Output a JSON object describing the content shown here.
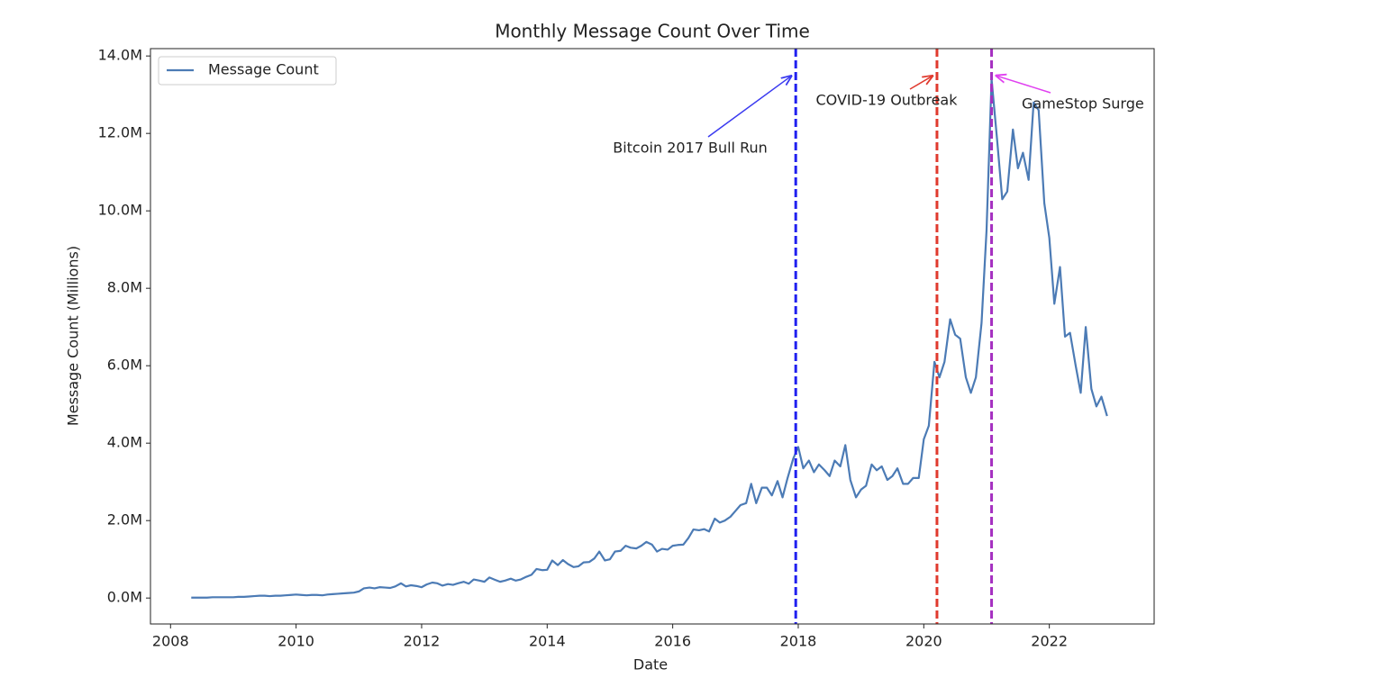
{
  "chart_data": {
    "type": "line",
    "title": "Monthly Message Count Over Time",
    "x_label": "Date",
    "y_label": "Message Count (Millions)",
    "x": [
      2008.33,
      2008.42,
      2008.5,
      2008.58,
      2008.67,
      2008.75,
      2008.83,
      2008.92,
      2009,
      2009.08,
      2009.17,
      2009.25,
      2009.33,
      2009.42,
      2009.5,
      2009.58,
      2009.67,
      2009.75,
      2009.83,
      2009.92,
      2010,
      2010.08,
      2010.17,
      2010.25,
      2010.33,
      2010.42,
      2010.5,
      2010.58,
      2010.67,
      2010.75,
      2010.83,
      2010.92,
      2011,
      2011.08,
      2011.17,
      2011.25,
      2011.33,
      2011.42,
      2011.5,
      2011.58,
      2011.67,
      2011.75,
      2011.83,
      2011.92,
      2012,
      2012.08,
      2012.17,
      2012.25,
      2012.33,
      2012.42,
      2012.5,
      2012.58,
      2012.67,
      2012.75,
      2012.83,
      2012.92,
      2013,
      2013.08,
      2013.17,
      2013.25,
      2013.33,
      2013.42,
      2013.5,
      2013.58,
      2013.67,
      2013.75,
      2013.83,
      2013.92,
      2014,
      2014.08,
      2014.17,
      2014.25,
      2014.33,
      2014.42,
      2014.5,
      2014.58,
      2014.67,
      2014.75,
      2014.83,
      2014.92,
      2015,
      2015.08,
      2015.17,
      2015.25,
      2015.33,
      2015.42,
      2015.5,
      2015.58,
      2015.67,
      2015.75,
      2015.83,
      2015.92,
      2016,
      2016.08,
      2016.17,
      2016.25,
      2016.33,
      2016.42,
      2016.5,
      2016.58,
      2016.67,
      2016.75,
      2016.83,
      2016.92,
      2017,
      2017.08,
      2017.17,
      2017.25,
      2017.33,
      2017.42,
      2017.5,
      2017.58,
      2017.67,
      2017.75,
      2017.83,
      2017.92,
      2018,
      2018.08,
      2018.17,
      2018.25,
      2018.33,
      2018.42,
      2018.5,
      2018.58,
      2018.67,
      2018.75,
      2018.83,
      2018.92,
      2019,
      2019.08,
      2019.17,
      2019.25,
      2019.33,
      2019.42,
      2019.5,
      2019.58,
      2019.67,
      2019.75,
      2019.83,
      2019.92,
      2020,
      2020.08,
      2020.17,
      2020.25,
      2020.33,
      2020.42,
      2020.5,
      2020.58,
      2020.67,
      2020.75,
      2020.83,
      2020.92,
      2021,
      2021.08,
      2021.17,
      2021.25,
      2021.33,
      2021.42,
      2021.5,
      2021.58,
      2021.67,
      2021.75,
      2021.83,
      2021.92,
      2022,
      2022.08,
      2022.17,
      2022.25,
      2022.33,
      2022.42,
      2022.5,
      2022.58,
      2022.67,
      2022.75,
      2022.83,
      2022.92
    ],
    "series": [
      {
        "name": "Message Count",
        "color": "#4c7bb5",
        "values": [
          0.01,
          0.01,
          0.01,
          0.01,
          0.02,
          0.02,
          0.02,
          0.02,
          0.02,
          0.03,
          0.03,
          0.04,
          0.05,
          0.06,
          0.06,
          0.05,
          0.06,
          0.06,
          0.07,
          0.08,
          0.09,
          0.08,
          0.07,
          0.08,
          0.08,
          0.07,
          0.09,
          0.1,
          0.11,
          0.12,
          0.13,
          0.14,
          0.17,
          0.25,
          0.27,
          0.25,
          0.28,
          0.27,
          0.26,
          0.3,
          0.38,
          0.3,
          0.33,
          0.31,
          0.28,
          0.35,
          0.4,
          0.38,
          0.32,
          0.36,
          0.34,
          0.38,
          0.42,
          0.37,
          0.48,
          0.45,
          0.42,
          0.53,
          0.47,
          0.42,
          0.45,
          0.5,
          0.45,
          0.48,
          0.55,
          0.6,
          0.75,
          0.72,
          0.73,
          0.97,
          0.85,
          0.98,
          0.88,
          0.8,
          0.82,
          0.92,
          0.93,
          1.02,
          1.2,
          0.97,
          1.0,
          1.2,
          1.22,
          1.35,
          1.3,
          1.28,
          1.35,
          1.45,
          1.38,
          1.2,
          1.27,
          1.25,
          1.35,
          1.37,
          1.38,
          1.55,
          1.77,
          1.75,
          1.78,
          1.72,
          2.05,
          1.95,
          2.0,
          2.1,
          2.25,
          2.4,
          2.45,
          2.95,
          2.45,
          2.85,
          2.85,
          2.65,
          3.02,
          2.6,
          3.1,
          3.6,
          3.9,
          3.35,
          3.55,
          3.25,
          3.45,
          3.3,
          3.15,
          3.55,
          3.4,
          3.95,
          3.05,
          2.6,
          2.8,
          2.9,
          3.45,
          3.3,
          3.4,
          3.05,
          3.15,
          3.35,
          2.95,
          2.95,
          3.1,
          3.1,
          4.1,
          4.45,
          6.1,
          5.7,
          6.1,
          7.2,
          6.8,
          6.7,
          5.7,
          5.3,
          5.7,
          7.1,
          9.5,
          13.4,
          11.8,
          10.3,
          10.5,
          12.1,
          11.1,
          11.5,
          10.8,
          12.8,
          12.6,
          10.2,
          9.3,
          7.6,
          8.55,
          6.75,
          6.85,
          6.0,
          5.3,
          7.0,
          5.4,
          4.95,
          5.2,
          4.7
        ]
      }
    ],
    "xlim": [
      2007.68,
      2023.67
    ],
    "ylim": [
      -0.67,
      14.19
    ],
    "xticks": [
      2008,
      2010,
      2012,
      2014,
      2016,
      2018,
      2020,
      2022
    ],
    "yticks": [
      {
        "value": 0,
        "label": "0.0M"
      },
      {
        "value": 2,
        "label": "2.0M"
      },
      {
        "value": 4,
        "label": "4.0M"
      },
      {
        "value": 6,
        "label": "6.0M"
      },
      {
        "value": 8,
        "label": "8.0M"
      },
      {
        "value": 10,
        "label": "10.0M"
      },
      {
        "value": 12,
        "label": "12.0M"
      },
      {
        "value": 14,
        "label": "14.0M"
      }
    ],
    "legend": "upper left",
    "annotations": [
      {
        "text": "Bitcoin 2017 Bull Run",
        "x": 2017.96,
        "y": 13.5,
        "color": "#2020f0",
        "arrow_color": "#3a3af0"
      },
      {
        "text": "COVID-19 Outbreak",
        "x": 2020.21,
        "y": 13.5,
        "color": "#e03a2e",
        "arrow_color": "#e03a2e"
      },
      {
        "text": "GameStop Surge",
        "x": 2021.08,
        "y": 13.5,
        "color": "#a530c0",
        "arrow_color": "#e040f0"
      }
    ]
  }
}
